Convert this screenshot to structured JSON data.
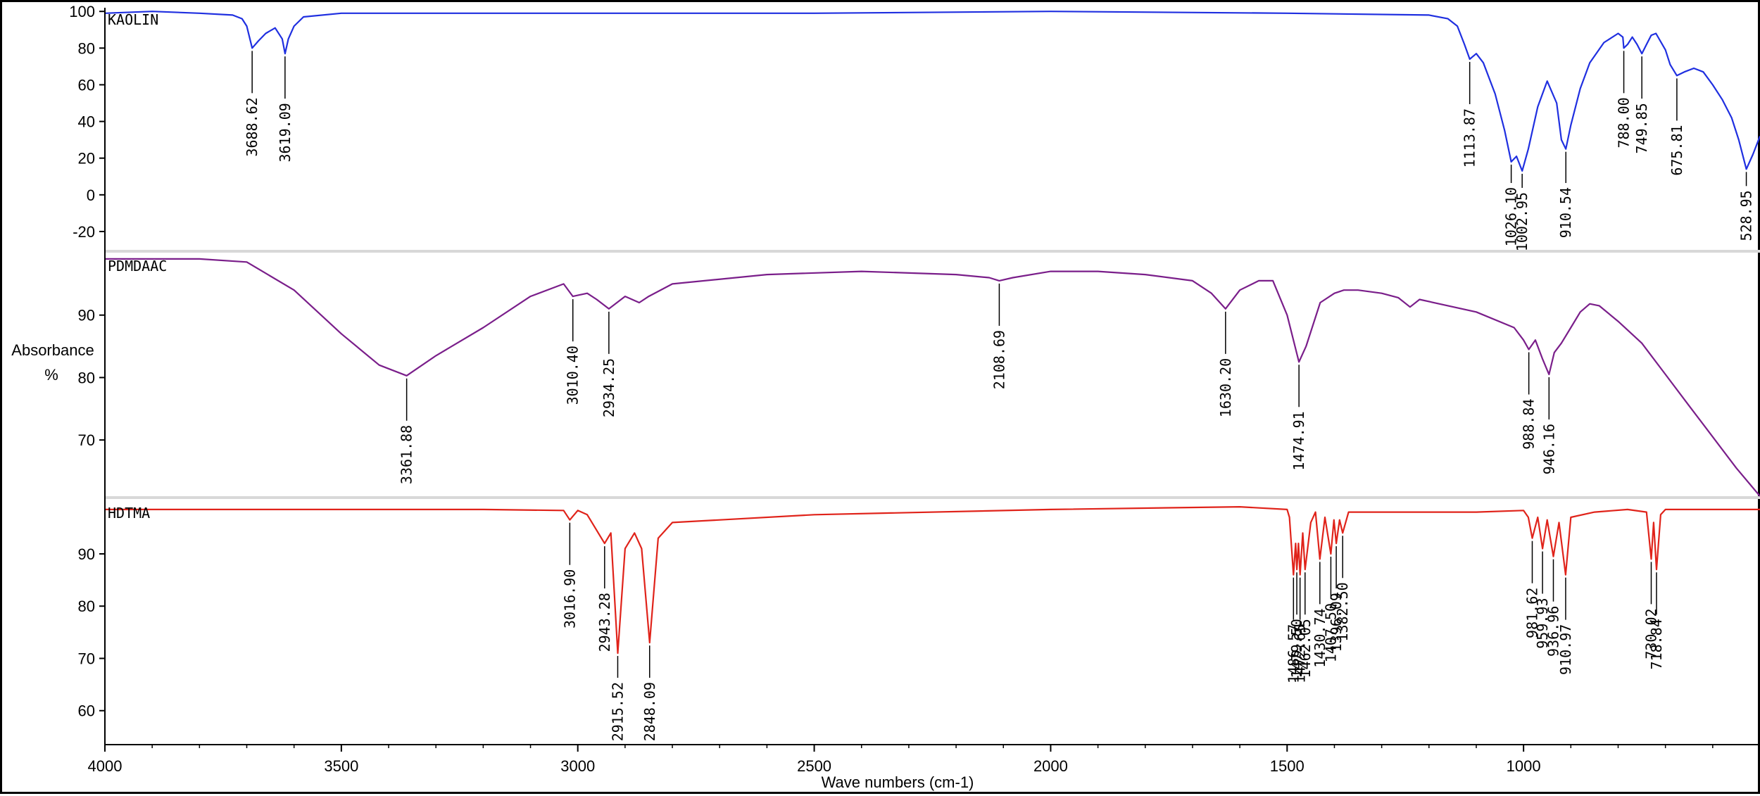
{
  "chart_data": {
    "type": "line",
    "layout": "stacked-panels",
    "xlabel": "Wave numbers (cm-1)",
    "ylabel_line1": "Absorbance",
    "ylabel_line2": "%",
    "xlim": [
      4000,
      500
    ],
    "x_ticks": [
      4000,
      3500,
      3000,
      2500,
      2000,
      1500,
      1000
    ],
    "x_tick_labels": [
      "4000",
      "3500",
      "3000",
      "2500",
      "2000",
      "1500",
      "1000"
    ],
    "grid": false,
    "panels": [
      {
        "name": "KAOLIN",
        "color": "#1f2fe0",
        "ylim": [
          -30,
          102
        ],
        "y_ticks": [
          100,
          80,
          60,
          40,
          20,
          0,
          -20
        ],
        "y_tick_labels": [
          "100",
          "80",
          "60",
          "40",
          "20",
          "0",
          "-20"
        ],
        "x": [
          4000,
          3900,
          3800,
          3730,
          3710,
          3700,
          3688.62,
          3675,
          3660,
          3640,
          3625,
          3619.09,
          3612,
          3600,
          3580,
          3500,
          3300,
          3000,
          2500,
          2000,
          1500,
          1200,
          1160,
          1140,
          1125,
          1113.87,
          1100,
          1085,
          1060,
          1040,
          1026.1,
          1015,
          1002.95,
          990,
          970,
          950,
          930,
          920,
          910.54,
          900,
          880,
          860,
          830,
          800,
          790,
          788.0,
          780,
          770,
          760,
          749.85,
          740,
          730,
          720,
          700,
          690,
          675.81,
          660,
          640,
          620,
          600,
          580,
          560,
          545,
          528.95,
          515,
          500
        ],
        "y": [
          99,
          100,
          99,
          98,
          96,
          92,
          80,
          84,
          88,
          91,
          85,
          77,
          85,
          92,
          97,
          99,
          99,
          99,
          99,
          100,
          99,
          98,
          96,
          92,
          82,
          74,
          77,
          72,
          55,
          35,
          18,
          21,
          13,
          25,
          48,
          62,
          50,
          30,
          25,
          38,
          58,
          72,
          83,
          88,
          86,
          80,
          82,
          86,
          82,
          77,
          82,
          87,
          88,
          79,
          71,
          65,
          67,
          69,
          67,
          60,
          52,
          42,
          30,
          14,
          22,
          32
        ]
      },
      {
        "name": "PDMDAAC",
        "color": "#7a1e8a",
        "ylim": [
          61,
          100
        ],
        "y_ticks": [
          90,
          80,
          70
        ],
        "y_tick_labels": [
          "90",
          "80",
          "70"
        ],
        "x": [
          4000,
          3800,
          3700,
          3600,
          3500,
          3420,
          3361.88,
          3300,
          3200,
          3100,
          3030,
          3010.4,
          2980,
          2960,
          2934.25,
          2900,
          2870,
          2850,
          2800,
          2600,
          2400,
          2200,
          2130,
          2108.69,
          2080,
          2000,
          1900,
          1800,
          1700,
          1660,
          1630.2,
          1600,
          1560,
          1530,
          1500,
          1480,
          1474.91,
          1460,
          1430,
          1400,
          1380,
          1350,
          1300,
          1265,
          1240,
          1220,
          1100,
          1020,
          1000,
          988.84,
          975,
          960,
          946.16,
          935,
          920,
          900,
          880,
          860,
          840,
          800,
          750,
          700,
          650,
          600,
          550,
          500
        ],
        "y": [
          99,
          99,
          98.5,
          94,
          87,
          82,
          80.3,
          83.5,
          88,
          93,
          95,
          93,
          93.5,
          92.5,
          91,
          93,
          92,
          93,
          95,
          96.5,
          97,
          96.5,
          96,
          95.5,
          96,
          97,
          97,
          96.5,
          95.5,
          93.5,
          91,
          94,
          95.5,
          95.5,
          90,
          84,
          82.5,
          85,
          92,
          93.5,
          94,
          94,
          93.5,
          92.8,
          91.3,
          92.5,
          90.5,
          88,
          86,
          84.5,
          86,
          83,
          80.5,
          84,
          85.5,
          88,
          90.5,
          91.8,
          91.5,
          89,
          85.5,
          80.5,
          75.5,
          70.5,
          65.5,
          61
        ]
      },
      {
        "name": "HDTMA",
        "color": "#e0231a",
        "ylim": [
          53.5,
          100.5
        ],
        "y_ticks": [
          90,
          80,
          70,
          60
        ],
        "y_tick_labels": [
          "90",
          "80",
          "70",
          "60"
        ],
        "x": [
          4000,
          3800,
          3500,
          3200,
          3030,
          3016.9,
          3000,
          2980,
          2960,
          2943.28,
          2930,
          2915.52,
          2900,
          2880,
          2865,
          2848.09,
          2830,
          2800,
          2500,
          2000,
          1600,
          1500,
          1495,
          1486.57,
          1482,
          1479.5,
          1476,
          1472.65,
          1467,
          1462.05,
          1450,
          1440,
          1430.74,
          1420,
          1407.5,
          1401,
          1396.09,
          1389,
          1382.5,
          1370,
          1250,
          1100,
          1000,
          990,
          981.62,
          970,
          959.93,
          950,
          936.96,
          925,
          910.97,
          900,
          850,
          780,
          740,
          730.02,
          725,
          718.84,
          710,
          700,
          500
        ],
        "y": [
          98.5,
          98.5,
          98.5,
          98.5,
          98.3,
          96.5,
          98.3,
          97.5,
          94.5,
          92,
          94,
          71,
          91,
          94,
          91,
          73,
          93,
          96,
          97.5,
          98.5,
          99,
          98.5,
          97,
          86,
          92,
          87,
          92,
          86,
          94,
          87,
          96,
          98,
          89,
          97,
          90,
          96.5,
          92,
          96.5,
          94,
          98,
          98,
          98,
          98.3,
          97,
          93,
          97,
          91,
          96.5,
          89.5,
          96,
          86,
          97,
          98,
          98.5,
          98,
          89,
          96,
          87,
          97.5,
          98.5,
          98.5
        ]
      }
    ],
    "annotations": [
      {
        "panel": 0,
        "x": 3688.62,
        "label": "3688.62"
      },
      {
        "panel": 0,
        "x": 3619.09,
        "label": "3619.09"
      },
      {
        "panel": 0,
        "x": 1113.87,
        "label": "1113.87"
      },
      {
        "panel": 0,
        "x": 1026.1,
        "label": "1026.10"
      },
      {
        "panel": 0,
        "x": 1002.95,
        "label": "1002.95"
      },
      {
        "panel": 0,
        "x": 910.54,
        "label": "910.54"
      },
      {
        "panel": 0,
        "x": 788.0,
        "label": "788.00"
      },
      {
        "panel": 0,
        "x": 749.85,
        "label": "749.85"
      },
      {
        "panel": 0,
        "x": 675.81,
        "label": "675.81"
      },
      {
        "panel": 0,
        "x": 528.95,
        "label": "528.95"
      },
      {
        "panel": 1,
        "x": 3361.88,
        "label": "3361.88"
      },
      {
        "panel": 1,
        "x": 3010.4,
        "label": "3010.40"
      },
      {
        "panel": 1,
        "x": 2934.25,
        "label": "2934.25"
      },
      {
        "panel": 1,
        "x": 2108.69,
        "label": "2108.69"
      },
      {
        "panel": 1,
        "x": 1630.2,
        "label": "1630.20"
      },
      {
        "panel": 1,
        "x": 1474.91,
        "label": "1474.91"
      },
      {
        "panel": 1,
        "x": 988.84,
        "label": "988.84"
      },
      {
        "panel": 1,
        "x": 946.16,
        "label": "946.16"
      },
      {
        "panel": 2,
        "x": 3016.9,
        "label": "3016.90"
      },
      {
        "panel": 2,
        "x": 2943.28,
        "label": "2943.28"
      },
      {
        "panel": 2,
        "x": 2915.52,
        "label": "2915.52"
      },
      {
        "panel": 2,
        "x": 2848.09,
        "label": "2848.09"
      },
      {
        "panel": 2,
        "x": 1486.57,
        "label": "1486.57"
      },
      {
        "panel": 2,
        "x": 1479.5,
        "label": "1479.50"
      },
      {
        "panel": 2,
        "x": 1472.65,
        "label": "1472.65"
      },
      {
        "panel": 2,
        "x": 1462.05,
        "label": "1462.05"
      },
      {
        "panel": 2,
        "x": 1430.74,
        "label": "1430.74"
      },
      {
        "panel": 2,
        "x": 1407.5,
        "label": "1407.50"
      },
      {
        "panel": 2,
        "x": 1396.09,
        "label": "1396.09"
      },
      {
        "panel": 2,
        "x": 1382.5,
        "label": "1382.50"
      },
      {
        "panel": 2,
        "x": 981.62,
        "label": "981.62"
      },
      {
        "panel": 2,
        "x": 959.93,
        "label": "959.93"
      },
      {
        "panel": 2,
        "x": 936.96,
        "label": "936.96"
      },
      {
        "panel": 2,
        "x": 910.97,
        "label": "910.97"
      },
      {
        "panel": 2,
        "x": 730.02,
        "label": "730.02"
      },
      {
        "panel": 2,
        "x": 718.84,
        "label": "718.84"
      }
    ]
  }
}
